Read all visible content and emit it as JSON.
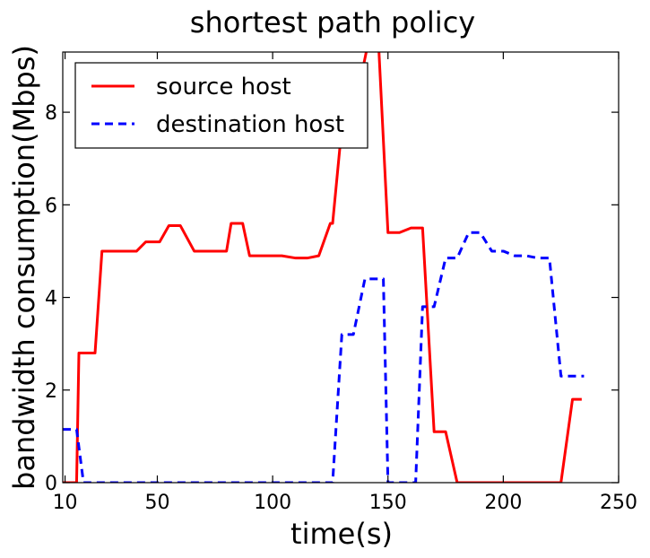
{
  "chart_data": {
    "type": "line",
    "title": "shortest path policy",
    "xlabel": "time(s)",
    "ylabel": "bandwidth consumption(Mbps)",
    "xlim": [
      9,
      250
    ],
    "ylim": [
      0,
      9.3
    ],
    "xticks": [
      10,
      50,
      100,
      150,
      200,
      250
    ],
    "yticks": [
      0,
      2,
      4,
      6,
      8
    ],
    "grid": false,
    "legend_position": "top-left",
    "series": [
      {
        "name": "source host",
        "color": "#ff0000",
        "style": "solid",
        "x": [
          9,
          15,
          16,
          18,
          23,
          26,
          30,
          35,
          40,
          41,
          45,
          50,
          51,
          55,
          58,
          60,
          66,
          70,
          73,
          77,
          80,
          82,
          87,
          90,
          95,
          100,
          104,
          110,
          115,
          120,
          125,
          126,
          131,
          136,
          141,
          145,
          146,
          150,
          155,
          160,
          165,
          170,
          175,
          180,
          185,
          190,
          195,
          200,
          205,
          210,
          215,
          220,
          225,
          230,
          234
        ],
        "y": [
          0,
          0,
          2.8,
          2.8,
          2.8,
          5.0,
          5.0,
          5.0,
          5.0,
          5.0,
          5.2,
          5.2,
          5.2,
          5.55,
          5.55,
          5.55,
          5.0,
          5.0,
          5.0,
          5.0,
          5.0,
          5.6,
          5.6,
          4.9,
          4.9,
          4.9,
          4.9,
          4.85,
          4.85,
          4.9,
          5.6,
          5.6,
          8.2,
          8.2,
          9.4,
          9.4,
          9.4,
          5.4,
          5.4,
          5.5,
          5.5,
          1.1,
          1.1,
          0,
          0,
          0,
          0,
          0,
          0,
          0,
          0,
          0,
          0,
          1.8,
          1.8
        ]
      },
      {
        "name": "destination host",
        "color": "#0000ff",
        "style": "dashed",
        "x": [
          9,
          15,
          18,
          20,
          30,
          40,
          50,
          60,
          70,
          80,
          90,
          100,
          110,
          120,
          126,
          130,
          135,
          140,
          145,
          148,
          150,
          155,
          160,
          162,
          165,
          170,
          175,
          180,
          185,
          190,
          195,
          200,
          205,
          210,
          215,
          220,
          225,
          230,
          235
        ],
        "y": [
          1.15,
          1.15,
          0,
          0,
          0,
          0,
          0,
          0,
          0,
          0,
          0,
          0,
          0,
          0,
          0,
          3.2,
          3.2,
          4.4,
          4.4,
          4.4,
          0,
          0,
          0,
          0,
          3.8,
          3.8,
          4.85,
          4.85,
          5.4,
          5.4,
          5.0,
          5.0,
          4.9,
          4.9,
          4.85,
          4.85,
          2.3,
          2.3,
          2.3
        ]
      }
    ]
  }
}
